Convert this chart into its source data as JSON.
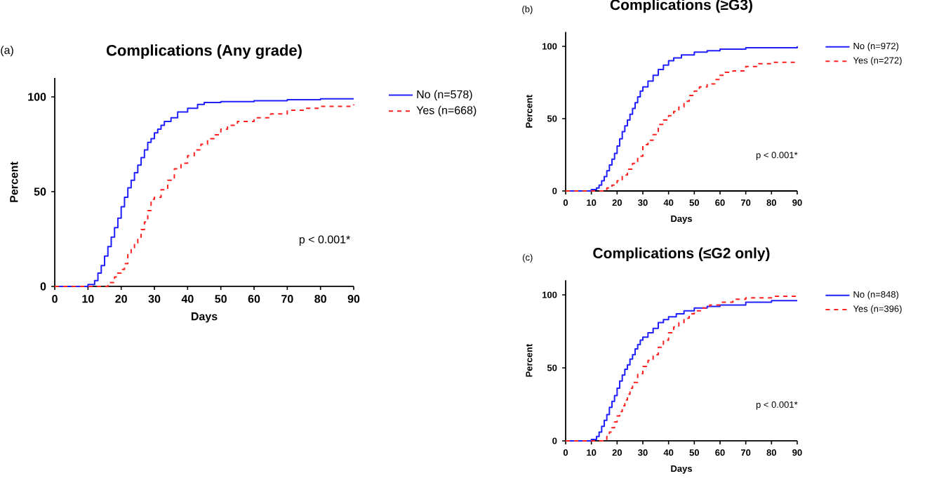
{
  "chart_data": [
    {
      "type": "step",
      "title": "Complications (Any grade)",
      "xlabel": "Days",
      "ylabel": "Percent",
      "xlim": [
        0,
        90
      ],
      "xticks": [
        0,
        10,
        20,
        30,
        40,
        50,
        60,
        70,
        80,
        90
      ],
      "ylim": [
        0,
        110
      ],
      "yticks": [
        0,
        50,
        100
      ],
      "legend": "right",
      "annotations": [
        "(a)",
        "p < 0.001*"
      ],
      "series": [
        {
          "name": "No (n=578)",
          "color": "#2020ff",
          "line_style": "solid",
          "x": [
            0,
            8,
            10,
            12,
            13,
            14,
            15,
            16,
            17,
            18,
            19,
            20,
            21,
            22,
            23,
            24,
            25,
            26,
            27,
            28,
            29,
            30,
            31,
            32,
            33,
            35,
            37,
            40,
            43,
            45,
            50,
            60,
            70,
            80,
            90
          ],
          "values": [
            0,
            0,
            1,
            3,
            7,
            11,
            16,
            21,
            26,
            31,
            36,
            42,
            47,
            52,
            56,
            60,
            64,
            68,
            72,
            76,
            78,
            81,
            83,
            85,
            87,
            89,
            92,
            94,
            96,
            97,
            97.5,
            98,
            98.5,
            99,
            99
          ]
        },
        {
          "name": "Yes (n=668)",
          "color": "#ff2020",
          "line_style": "dashed",
          "x": [
            0,
            14,
            16,
            18,
            19,
            20,
            21,
            22,
            23,
            24,
            25,
            26,
            27,
            28,
            29,
            30,
            32,
            34,
            36,
            38,
            40,
            42,
            44,
            46,
            48,
            50,
            52,
            55,
            60,
            65,
            70,
            75,
            80,
            90
          ],
          "values": [
            0,
            0,
            2,
            5,
            7,
            9,
            12,
            17,
            20,
            23,
            26,
            30,
            34,
            40,
            46,
            47,
            51,
            56,
            62,
            65,
            69,
            72,
            75,
            78,
            80,
            83,
            85,
            87,
            89,
            91,
            93,
            94,
            95,
            96
          ]
        }
      ]
    },
    {
      "type": "step",
      "title": "Complications (≥G3)",
      "xlabel": "Days",
      "ylabel": "Percent",
      "xlim": [
        0,
        90
      ],
      "xticks": [
        0,
        10,
        20,
        30,
        40,
        50,
        60,
        70,
        80,
        90
      ],
      "ylim": [
        0,
        110
      ],
      "yticks": [
        0,
        50,
        100
      ],
      "legend": "right",
      "annotations": [
        "(b)",
        "p < 0.001*"
      ],
      "series": [
        {
          "name": "No (n=972)",
          "color": "#2020ff",
          "line_style": "solid",
          "x": [
            0,
            10,
            12,
            13,
            14,
            15,
            16,
            17,
            18,
            19,
            20,
            21,
            22,
            23,
            24,
            25,
            26,
            27,
            28,
            29,
            30,
            32,
            34,
            36,
            38,
            40,
            42,
            45,
            50,
            55,
            60,
            70,
            80,
            90
          ],
          "values": [
            0,
            1,
            2,
            4,
            7,
            10,
            14,
            18,
            22,
            26,
            31,
            36,
            41,
            45,
            49,
            53,
            57,
            61,
            65,
            69,
            72,
            76,
            80,
            84,
            87,
            90,
            92,
            94,
            96,
            97,
            98,
            99,
            99,
            100
          ]
        },
        {
          "name": "Yes (n=272)",
          "color": "#ff2020",
          "line_style": "dashed",
          "x": [
            0,
            14,
            16,
            18,
            20,
            22,
            24,
            26,
            28,
            30,
            32,
            34,
            36,
            38,
            40,
            42,
            44,
            46,
            48,
            50,
            52,
            55,
            58,
            60,
            62,
            65,
            70,
            75,
            80,
            90
          ],
          "values": [
            0,
            0,
            2,
            4,
            7,
            11,
            15,
            19,
            24,
            32,
            35,
            39,
            46,
            49,
            52,
            55,
            58,
            62,
            66,
            69,
            72,
            74,
            77,
            80,
            82,
            83,
            86,
            88,
            89,
            90
          ]
        }
      ]
    },
    {
      "type": "step",
      "title": "Complications (≤G2 only)",
      "xlabel": "Days",
      "ylabel": "Percent",
      "xlim": [
        0,
        90
      ],
      "xticks": [
        0,
        10,
        20,
        30,
        40,
        50,
        60,
        70,
        80,
        90
      ],
      "ylim": [
        0,
        110
      ],
      "yticks": [
        0,
        50,
        100
      ],
      "legend": "right",
      "annotations": [
        "(c)",
        "p < 0.001*"
      ],
      "series": [
        {
          "name": "No (n=848)",
          "color": "#2020ff",
          "line_style": "solid",
          "x": [
            0,
            10,
            12,
            13,
            14,
            15,
            16,
            17,
            18,
            19,
            20,
            21,
            22,
            23,
            24,
            25,
            26,
            27,
            28,
            29,
            30,
            32,
            34,
            36,
            38,
            40,
            43,
            46,
            50,
            55,
            60,
            70,
            80,
            90
          ],
          "values": [
            0,
            1,
            3,
            6,
            10,
            14,
            18,
            23,
            27,
            31,
            36,
            41,
            45,
            49,
            52,
            56,
            59,
            63,
            66,
            69,
            71,
            74,
            77,
            81,
            83,
            85,
            87,
            89,
            91,
            92,
            93,
            95,
            96,
            96
          ]
        },
        {
          "name": "Yes (n=396)",
          "color": "#ff2020",
          "line_style": "dashed",
          "x": [
            0,
            14,
            16,
            17,
            18,
            19,
            20,
            21,
            22,
            23,
            24,
            25,
            26,
            28,
            30,
            32,
            34,
            36,
            38,
            40,
            42,
            44,
            46,
            48,
            50,
            53,
            56,
            60,
            65,
            70,
            80,
            90
          ],
          "values": [
            0,
            0,
            3,
            6,
            9,
            13,
            17,
            20,
            24,
            28,
            32,
            36,
            40,
            46,
            51,
            55,
            59,
            64,
            69,
            74,
            78,
            81,
            84,
            87,
            89,
            91,
            93,
            95,
            97,
            98,
            99,
            100
          ]
        }
      ]
    }
  ]
}
